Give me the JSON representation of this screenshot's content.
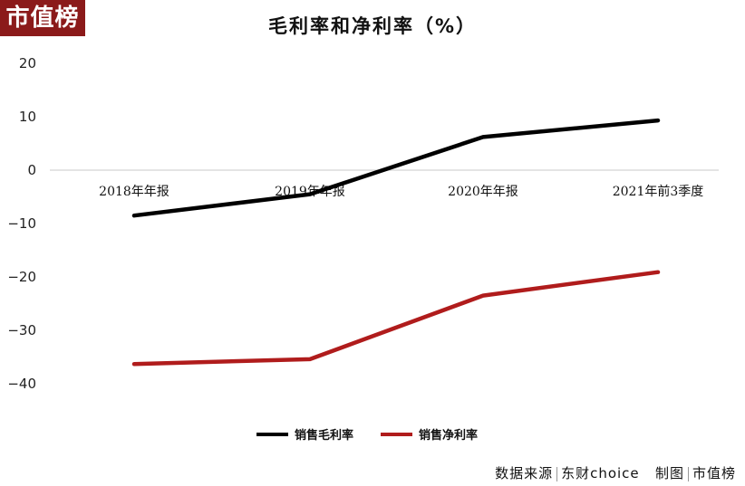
{
  "logo": "市值榜",
  "footer": {
    "source_label": "数据来源",
    "source_value": "东财choice",
    "made_label": "制图",
    "made_value": "市值榜"
  },
  "chart_data": {
    "type": "line",
    "title": "毛利率和净利率（%）",
    "categories": [
      "2018年年报",
      "2019年年报",
      "2020年年报",
      "2021年前3季度"
    ],
    "ylim": [
      -40,
      20
    ],
    "yticks": [
      20,
      10,
      0,
      -10,
      -20,
      -30,
      -40
    ],
    "grid": false,
    "legend_position": "bottom",
    "series": [
      {
        "name": "销售毛利率",
        "color": "#000000",
        "values": [
          -8.5,
          -4.5,
          6.2,
          9.3
        ]
      },
      {
        "name": "销售净利率",
        "color": "#b01c1c",
        "values": [
          -36.3,
          -35.4,
          -23.5,
          -19.1
        ]
      }
    ]
  }
}
